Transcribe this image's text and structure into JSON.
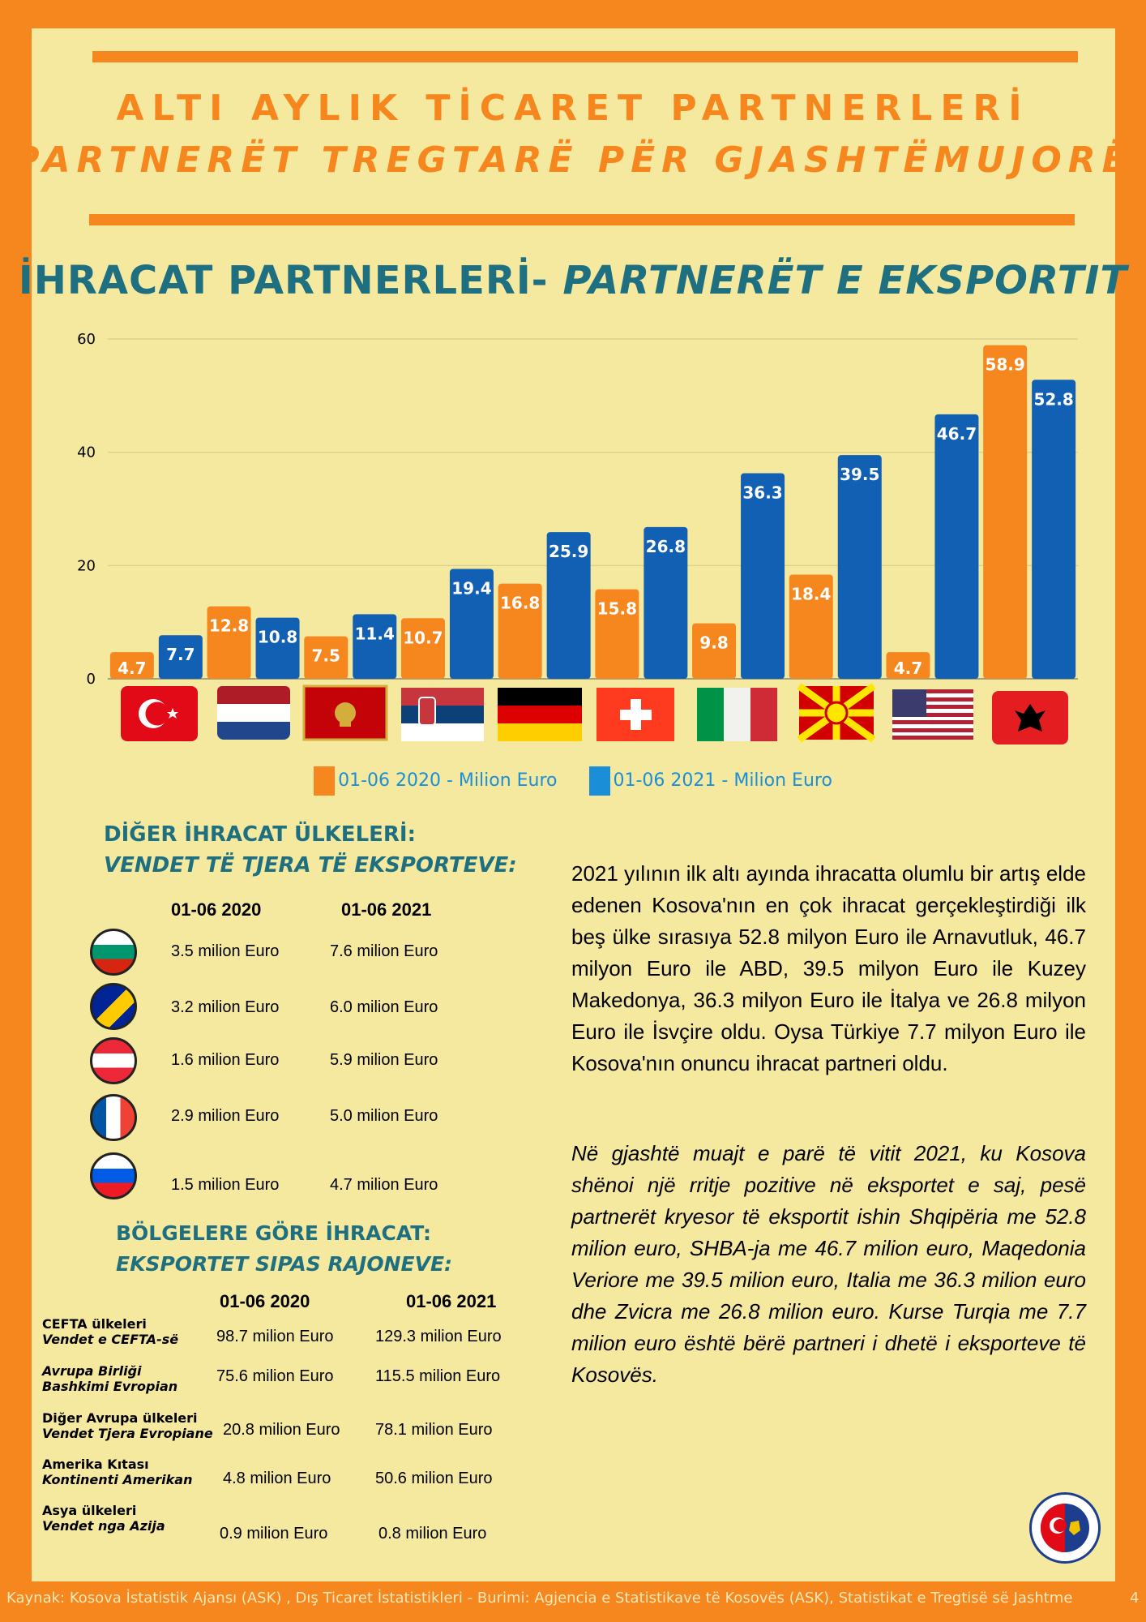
{
  "header": {
    "title_tr": "ALTI AYLIK TİCARET PARTNERLERİ",
    "title_sq": "PARTNERËT TREGTARË PËR GJASHTËMUJORË"
  },
  "export_section": {
    "title_tr": "İHRACAT PARTNERLERİ-",
    "title_sq": "PARTNERËT E EKSPORTIT"
  },
  "colors": {
    "orange": "#f6871f",
    "blue": "#1260b4",
    "legend_blue": "#1a8fd8",
    "teal": "#1e6f80",
    "panel": "#f5e9a0"
  },
  "chart_data": {
    "type": "bar",
    "categories": [
      "Türkiye",
      "Netherlands",
      "Montenegro",
      "Serbia",
      "Germany",
      "Switzerland",
      "Italy",
      "North Macedonia",
      "USA",
      "Albania"
    ],
    "category_icons": [
      "flag-turkey",
      "flag-netherlands",
      "flag-montenegro",
      "flag-serbia",
      "flag-germany",
      "flag-switzerland",
      "flag-italy",
      "flag-north-macedonia",
      "flag-usa",
      "flag-albania"
    ],
    "series": [
      {
        "name": "01-06 2020 - Milion Euro",
        "color": "#f6871f",
        "values": [
          4.7,
          12.8,
          7.5,
          10.7,
          16.8,
          15.8,
          9.8,
          18.4,
          4.7,
          58.9
        ]
      },
      {
        "name": "01-06 2021 - Milion Euro",
        "color": "#1260b4",
        "values": [
          7.7,
          10.8,
          11.4,
          19.4,
          25.9,
          26.8,
          36.3,
          39.5,
          46.7,
          52.8
        ]
      }
    ],
    "ylim": [
      0,
      60
    ],
    "yticks": [
      "0",
      "20",
      "40",
      "60"
    ],
    "grid": true,
    "legend_position": "bottom"
  },
  "legend": {
    "label_2020": "01-06 2020 - Milion Euro",
    "label_2021": "01-06 2021 - Milion Euro"
  },
  "other_exports": {
    "title_tr": "DİĞER İHRACAT ÜLKELERİ:",
    "title_sq": "VENDET TË TJERA TË EKSPORTEVE:",
    "col_2020": "01-06 2020",
    "col_2021": "01-06 2021",
    "rows": [
      {
        "flag": "flag-bulgaria",
        "v2020": "3.5 milion Euro",
        "v2021": "7.6 milion Euro"
      },
      {
        "flag": "flag-bosnia",
        "v2020": "3.2 milion Euro",
        "v2021": "6.0 milion Euro"
      },
      {
        "flag": "flag-austria",
        "v2020": "1.6 milion Euro",
        "v2021": "5.9 milion Euro"
      },
      {
        "flag": "flag-france",
        "v2020": "2.9 milion Euro",
        "v2021": "5.0 milion Euro"
      },
      {
        "flag": "flag-slovenia",
        "v2020": "1.5 milion Euro",
        "v2021": "4.7 milion Euro"
      }
    ]
  },
  "regions": {
    "title_tr": "BÖLGELERE GÖRE İHRACAT:",
    "title_sq": "EKSPORTET SIPAS RAJONEVE:",
    "col_2020": "01-06 2020",
    "col_2021": "01-06 2021",
    "rows": [
      {
        "name_tr": "CEFTA ülkeleri",
        "name_sq": "Vendet e CEFTA-së",
        "v2020": "98.7 milion Euro",
        "v2021": "129.3 milion Euro"
      },
      {
        "name_tr": "Avrupa Birliği",
        "name_sq": "Bashkimi Evropian",
        "v2020": "75.6 milion Euro",
        "v2021": "115.5 milion Euro"
      },
      {
        "name_tr": "Diğer Avrupa ülkeleri",
        "name_sq": "Vendet Tjera Evropiane",
        "v2020": "20.8 milion Euro",
        "v2021": "78.1 milion Euro"
      },
      {
        "name_tr": "Amerika Kıtası",
        "name_sq": "Kontinenti Amerikan",
        "v2020": "4.8 milion Euro",
        "v2021": "50.6 milion Euro"
      },
      {
        "name_tr": "Asya ülkeleri",
        "name_sq": "Vendet nga Azija",
        "v2020": "0.9 milion Euro",
        "v2021": "0.8 milion Euro"
      }
    ]
  },
  "text": {
    "para_tr": "2021 yılının ilk altı ayında ihracatta olumlu bir artış elde edenen Kosova'nın en çok ihracat gerçekleştirdiği ilk beş ülke sırasıya 52.8 milyon Euro ile Arnavutluk, 46.7 milyon Euro ile ABD, 39.5 milyon Euro ile Kuzey Makedonya, 36.3 milyon Euro ile İtalya ve 26.8 milyon Euro ile İsvçire oldu.  Oysa Türkiye 7.7 milyon Euro ile Kosova'nın onuncu ihracat partneri oldu.",
    "para_sq": "Në gjashtë muajt e parë të vitit 2021, ku Kosova shënoi një rritje pozitive në eksportet e saj, pesë partnerët kryesor të eksportit ishin Shqipëria me 52.8 milion euro, SHBA-ja me 46.7 milion euro, Maqedonia Veriore me 39.5 milion euro, Italia me 36.3 milion euro dhe Zvicra me 26.8 milion euro. Kurse Turqia me 7.7 milion euro është bërë partneri i dhetë i eksporteve të Kosovës."
  },
  "footer": {
    "source": "Kaynak: Kosova İstatistik Ajansı (ASK) ,  Dış Ticaret İstatistikleri -   Burimi: Agjencia e Statistikave të Kosovës (ASK), Statistikat e Tregtisë së Jashtme",
    "page": "4"
  },
  "logo_icon": "chamber-of-commerce-logo"
}
